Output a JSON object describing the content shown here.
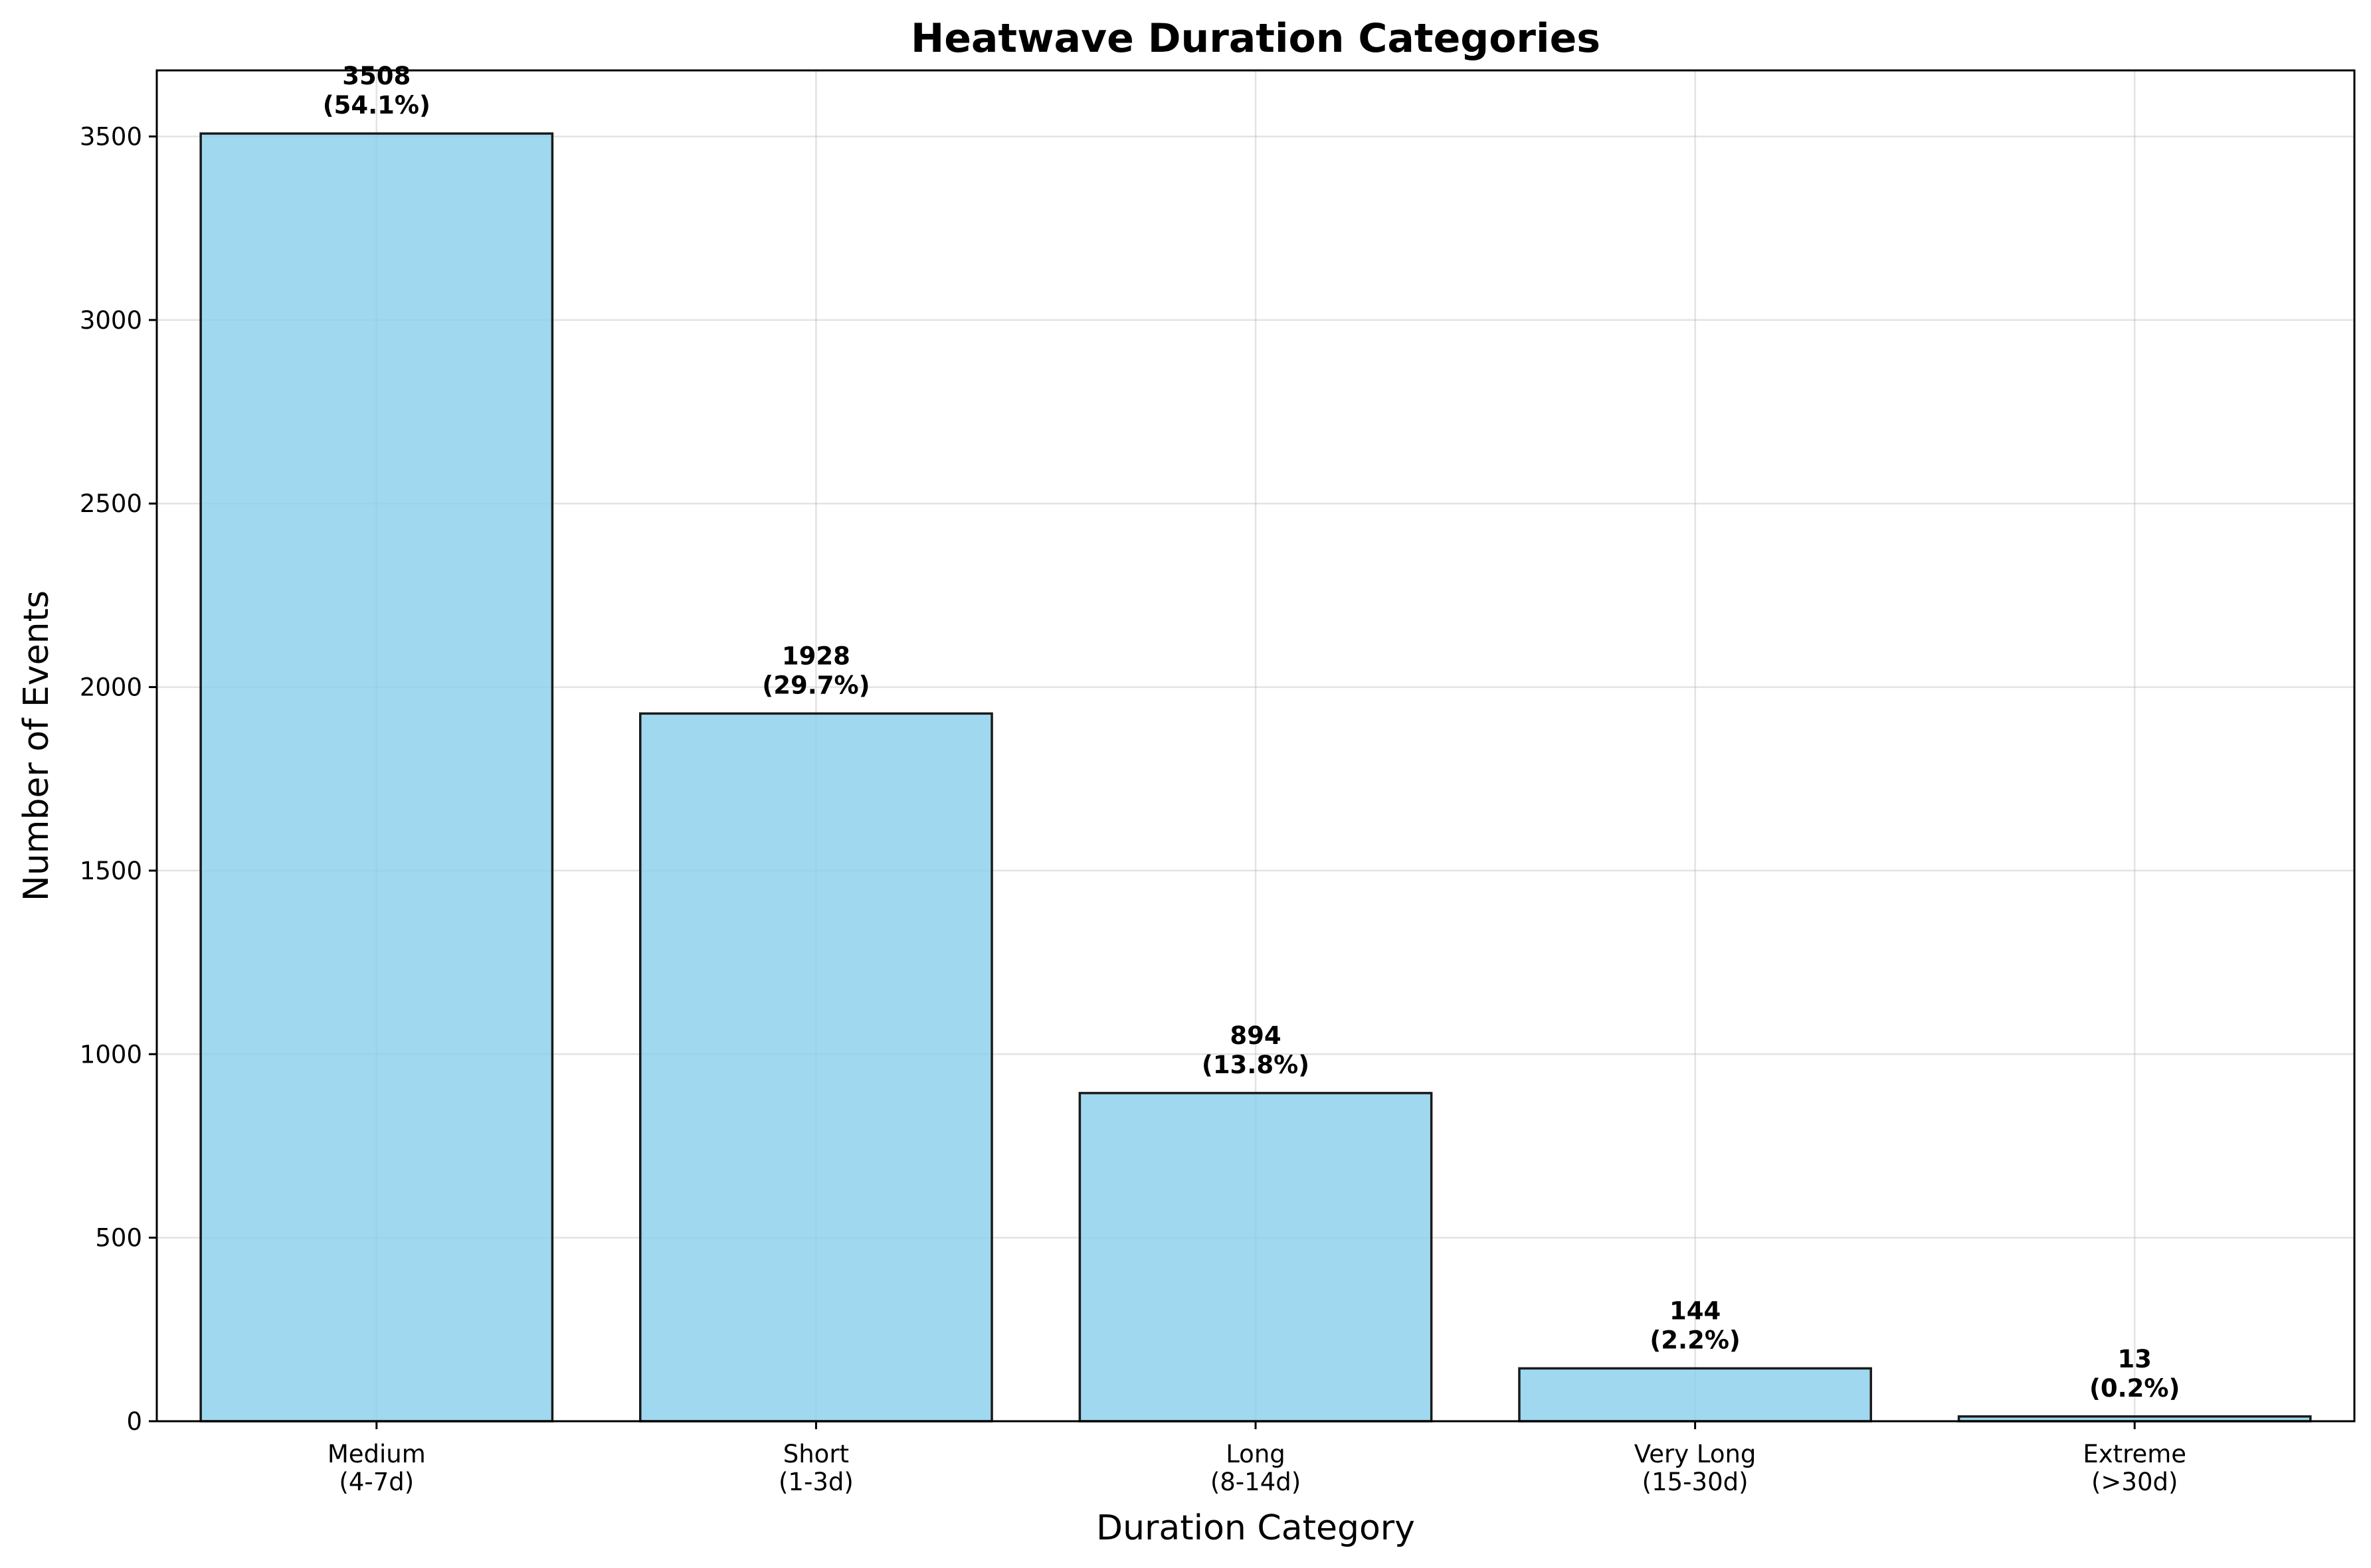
{
  "chart_data": {
    "type": "bar",
    "title": "Heatwave Duration Categories",
    "xlabel": "Duration Category",
    "ylabel": "Number of Events",
    "categories": [
      [
        "Medium",
        "(4-7d)"
      ],
      [
        "Short",
        "(1-3d)"
      ],
      [
        "Long",
        "(8-14d)"
      ],
      [
        "Very Long",
        "(15-30d)"
      ],
      [
        "Extreme",
        "(>30d)"
      ]
    ],
    "values": [
      3508,
      1928,
      894,
      144,
      13
    ],
    "value_labels": [
      "3508",
      "1928",
      "894",
      "144",
      "13"
    ],
    "percent_labels": [
      "(54.1%)",
      "(29.7%)",
      "(13.8%)",
      "(2.2%)",
      "(0.2%)"
    ],
    "ylim": [
      0,
      3680
    ],
    "yticks": [
      0,
      500,
      1000,
      1500,
      2000,
      2500,
      3000,
      3500
    ],
    "grid": true,
    "bar_color": "#87CEEB",
    "bar_edge_color": "#1a1a1a"
  }
}
